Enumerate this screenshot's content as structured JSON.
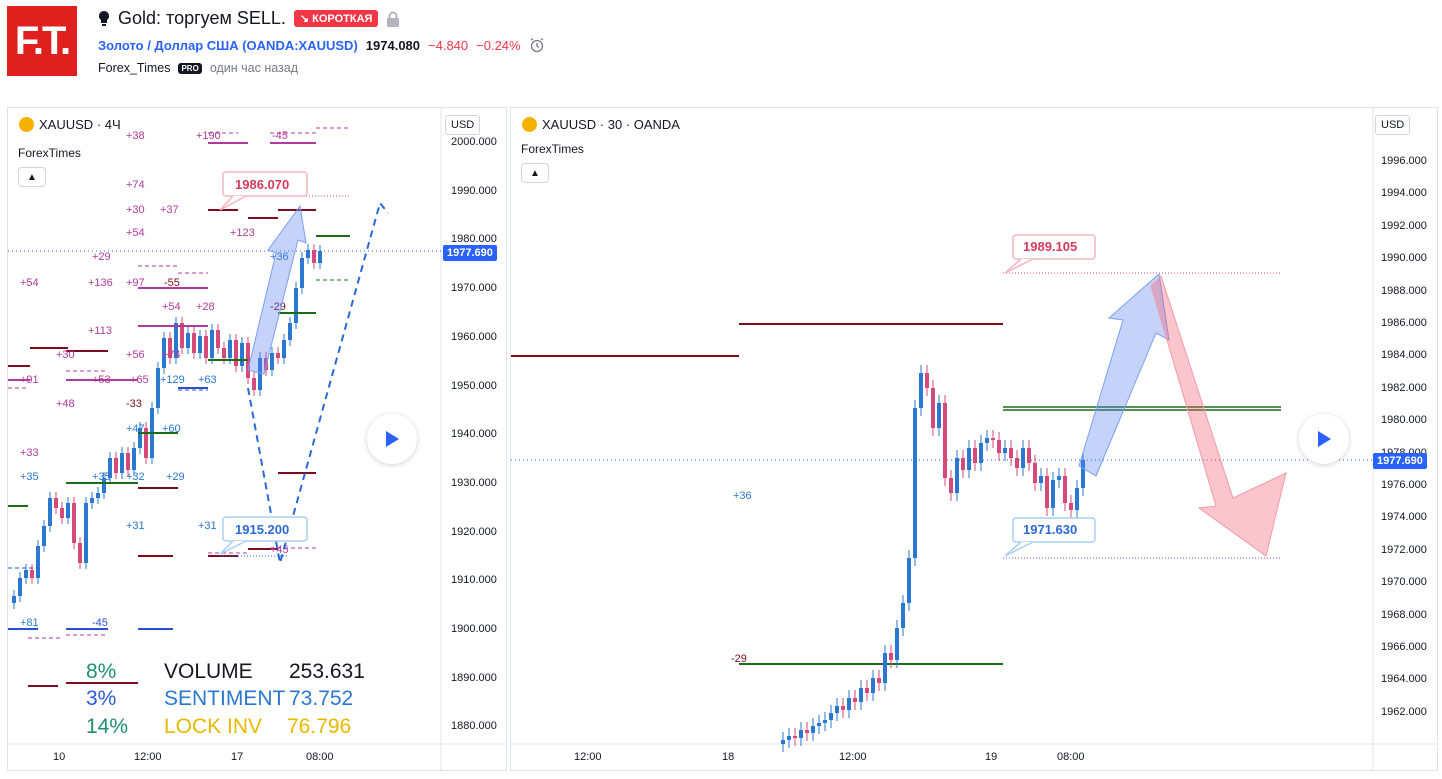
{
  "header": {
    "logo_text": "F.T.",
    "title": "Gold: торгуем SELL.",
    "badge": "↘ КОРОТКАЯ",
    "symbol_link": "Золото / Доллар США (OANDA:XAUUSD)",
    "price": "1974.080",
    "change": "−4.840",
    "change_pct": "−0.24%",
    "author": "Forex_Times",
    "author_badge": "PRO",
    "time_ago": "один час назад"
  },
  "left_chart": {
    "title": "XAUUSD · 4Ч",
    "indicator": "ForexTimes",
    "currency": "USD",
    "current_price": "1977.690",
    "y_ticks": [
      "2000.000",
      "1990.000",
      "1980.000",
      "1970.000",
      "1960.000",
      "1950.000",
      "1940.000",
      "1930.000",
      "1920.000",
      "1910.000",
      "1900.000",
      "1890.000",
      "1880.000"
    ],
    "x_ticks": [
      "10",
      "12:00",
      "17",
      "08:00"
    ],
    "callout_high": "1986.070",
    "callout_low": "1915.200",
    "stats": [
      {
        "pct": "8%",
        "label": "VOLUME",
        "value": "253.631"
      },
      {
        "pct": "3%",
        "label": "SENTIMENT",
        "value": "73.752"
      },
      {
        "pct": "14%",
        "label": "LOCK INV",
        "value": "76.796"
      }
    ],
    "colors": {
      "pct1": "#1f8f6f",
      "pct2": "#2a5bd7",
      "pct3": "#1f8f6f",
      "label2": "#2a78d0",
      "label3": "#e6b800"
    }
  },
  "right_chart": {
    "title": "XAUUSD · 30 · OANDA",
    "indicator": "ForexTimes",
    "currency": "USD",
    "current_price": "1977.690",
    "y_ticks": [
      "1996.000",
      "1994.000",
      "1992.000",
      "1990.000",
      "1988.000",
      "1986.000",
      "1984.000",
      "1982.000",
      "1980.000",
      "1978.000",
      "1976.000",
      "1974.000",
      "1972.000",
      "1970.000",
      "1968.000",
      "1966.000",
      "1964.000",
      "1962.000"
    ],
    "x_ticks": [
      "12:00",
      "18",
      "12:00",
      "19",
      "08:00"
    ],
    "callout_high": "1989.105",
    "callout_low": "1971.630",
    "annotations": [
      "+36",
      "-29"
    ]
  }
}
